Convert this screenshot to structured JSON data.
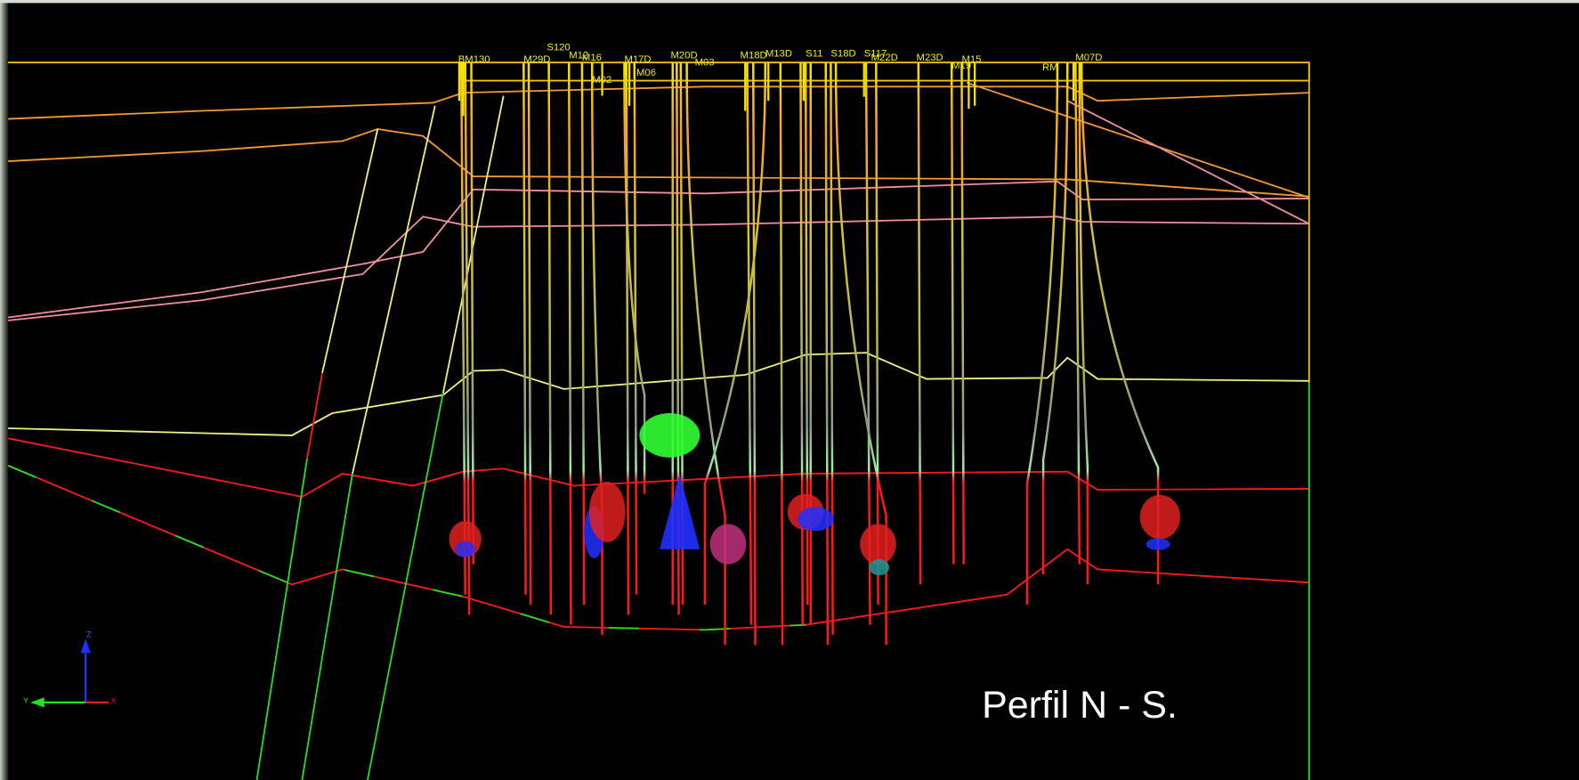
{
  "viewport": {
    "title": "Perfil N - S.",
    "well_labels": [
      "BM130",
      "M29D",
      "S120",
      "M12",
      "M16",
      "M02",
      "M17D",
      "M06",
      "M20D",
      "M03",
      "M18D",
      "M13D",
      "S11",
      "S18D",
      "S117",
      "M22D",
      "M23D",
      "M15",
      "M19",
      "RM",
      "M07D"
    ],
    "axes": [
      "Z",
      "Y",
      "X"
    ]
  }
}
